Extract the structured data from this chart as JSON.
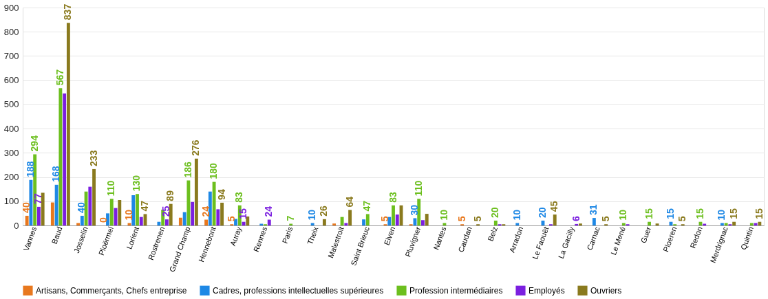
{
  "chart_data": {
    "type": "bar",
    "categories": [
      "Vannes",
      "Baud",
      "Josselin",
      "Ploërmel",
      "Lorient",
      "Rostrenen",
      "Grand Champ",
      "Hennebont",
      "Auray",
      "Rennes",
      "Paris",
      "Theix",
      "Malestroit",
      "Saint Brieuc",
      "Elven",
      "Pluvigner",
      "Nantes",
      "Caudan",
      "Belz",
      "Arradon",
      "Le Faouët",
      "La Gacilly",
      "Carnac",
      "Le Mené",
      "Guer",
      "Ploeren",
      "Redon",
      "Merdrignac",
      "Quintin"
    ],
    "series": [
      {
        "name": "Artisans, Commerçants, Chefs entreprise",
        "color": "#e8781e",
        "values": [
          40,
          95,
          10,
          0,
          10,
          0,
          32,
          24,
          5,
          0,
          0,
          0,
          8,
          0,
          5,
          5,
          0,
          5,
          0,
          0,
          0,
          0,
          0,
          0,
          0,
          0,
          0,
          0,
          0
        ],
        "value_labels": [
          "40",
          null,
          null,
          "0",
          "10",
          null,
          null,
          "24",
          "5",
          null,
          null,
          null,
          null,
          null,
          "5",
          null,
          null,
          "5",
          null,
          null,
          null,
          null,
          null,
          null,
          null,
          null,
          null,
          null,
          null
        ]
      },
      {
        "name": "Cadres, professions intellectuelles supérieures",
        "color": "#1e88e5",
        "values": [
          188,
          168,
          40,
          50,
          125,
          15,
          55,
          140,
          27,
          7,
          0,
          10,
          0,
          25,
          35,
          30,
          0,
          0,
          0,
          10,
          20,
          0,
          31,
          0,
          0,
          15,
          0,
          10,
          0
        ],
        "value_labels": [
          "188",
          "168",
          "40",
          null,
          null,
          null,
          null,
          null,
          null,
          null,
          null,
          "10",
          null,
          null,
          null,
          "30",
          null,
          null,
          null,
          "10",
          "20",
          null,
          "31",
          null,
          null,
          "15",
          null,
          "10",
          null
        ]
      },
      {
        "name": "Profession intermédiaires",
        "color": "#6cbf1e",
        "values": [
          294,
          567,
          140,
          110,
          130,
          65,
          186,
          180,
          83,
          5,
          7,
          0,
          35,
          47,
          83,
          110,
          10,
          0,
          20,
          0,
          0,
          0,
          0,
          10,
          15,
          5,
          15,
          10,
          10
        ],
        "value_labels": [
          "294",
          "567",
          null,
          "110",
          "130",
          null,
          "186",
          "180",
          "83",
          null,
          "7",
          null,
          null,
          "47",
          "83",
          "110",
          "10",
          null,
          "20",
          null,
          null,
          null,
          null,
          "10",
          "15",
          null,
          "15",
          null,
          null
        ]
      },
      {
        "name": "Employés",
        "color": "#7b1fe0",
        "values": [
          77,
          545,
          160,
          72,
          35,
          25,
          97,
          67,
          15,
          24,
          0,
          0,
          10,
          0,
          45,
          22,
          0,
          0,
          5,
          0,
          5,
          6,
          0,
          5,
          0,
          0,
          7,
          5,
          10
        ],
        "value_labels": [
          "77",
          null,
          null,
          null,
          null,
          "25",
          null,
          null,
          "15",
          "24",
          null,
          null,
          null,
          null,
          null,
          null,
          null,
          null,
          null,
          null,
          null,
          "6",
          null,
          null,
          null,
          null,
          null,
          null,
          null
        ]
      },
      {
        "name": "Ouvriers",
        "color": "#8a7a1e",
        "values": [
          135,
          837,
          233,
          105,
          47,
          89,
          276,
          94,
          37,
          0,
          0,
          26,
          64,
          0,
          83,
          48,
          0,
          5,
          5,
          0,
          45,
          8,
          5,
          0,
          8,
          5,
          0,
          15,
          15
        ],
        "value_labels": [
          null,
          "837",
          "233",
          null,
          "47",
          "89",
          "276",
          "94",
          null,
          null,
          null,
          "26",
          "64",
          null,
          null,
          null,
          null,
          "5",
          null,
          null,
          "45",
          null,
          "5",
          null,
          null,
          "5",
          null,
          "15",
          "15"
        ]
      }
    ],
    "ylim": [
      0,
      900
    ],
    "yticks": [
      0,
      100,
      200,
      300,
      400,
      500,
      600,
      700,
      800,
      900
    ],
    "grid": "y",
    "legend": "bottom"
  }
}
